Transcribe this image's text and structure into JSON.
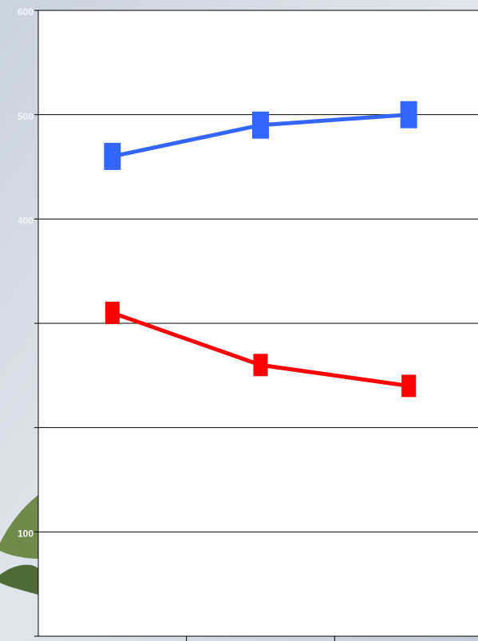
{
  "chart_data": {
    "type": "line",
    "categories": [
      null,
      null,
      null
    ],
    "series": [
      {
        "color": "#3366ff",
        "values": [
          460,
          490,
          500
        ]
      },
      {
        "color": "#ff0000",
        "values": [
          310,
          260,
          240
        ]
      }
    ],
    "ylim": [
      0,
      600
    ],
    "yticks": [
      {
        "value": 0,
        "label": null
      },
      {
        "value": 100,
        "label": "100"
      },
      {
        "value": 200,
        "label": null
      },
      {
        "value": 300,
        "label": null
      },
      {
        "value": 400,
        "label": "400"
      },
      {
        "value": 500,
        "label": "500"
      },
      {
        "value": 600,
        "label": "600"
      }
    ],
    "grid": true
  }
}
